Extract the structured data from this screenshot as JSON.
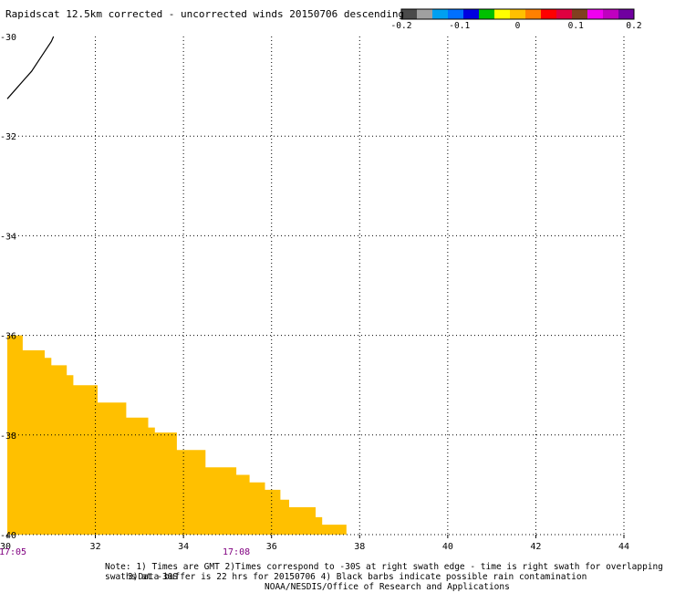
{
  "title": "Rapidscat 12.5km corrected - uncorrected winds 20150706 descending",
  "colorbar": {
    "colors": [
      "#4a4a4a",
      "#a0a0a0",
      "#00a0f0",
      "#0070ff",
      "#0000e0",
      "#00c000",
      "#ffff00",
      "#ffc000",
      "#ff8000",
      "#ff0000",
      "#e00040",
      "#804020",
      "#f000f0",
      "#c000c0",
      "#7000a0"
    ],
    "tick_labels": [
      "-0.2",
      "-0.1",
      "0",
      "0.1",
      "0.2"
    ]
  },
  "map": {
    "x_ticks": [
      "30",
      "32",
      "34",
      "36",
      "38",
      "40",
      "42",
      "44"
    ],
    "y_ticks": [
      "-30",
      "-32",
      "-34",
      "-36",
      "-38",
      "-40"
    ],
    "time_labels": [
      {
        "text": "17:05",
        "lon": 30
      },
      {
        "text": "17:08",
        "lon": 35.2
      }
    ],
    "time_label_color": "#800080",
    "swath_color": "#ffc000",
    "coast_color": "#000000",
    "swath_polygon": [
      [
        30,
        -36
      ],
      [
        30.35,
        -36
      ],
      [
        30.35,
        -36.3
      ],
      [
        30.85,
        -36.3
      ],
      [
        30.85,
        -36.45
      ],
      [
        31.0,
        -36.45
      ],
      [
        31.0,
        -36.6
      ],
      [
        31.35,
        -36.6
      ],
      [
        31.35,
        -36.8
      ],
      [
        31.5,
        -36.8
      ],
      [
        31.5,
        -37.0
      ],
      [
        32.05,
        -37.0
      ],
      [
        32.05,
        -37.35
      ],
      [
        32.7,
        -37.35
      ],
      [
        32.7,
        -37.65
      ],
      [
        33.2,
        -37.65
      ],
      [
        33.2,
        -37.85
      ],
      [
        33.35,
        -37.85
      ],
      [
        33.35,
        -37.95
      ],
      [
        33.85,
        -37.95
      ],
      [
        33.85,
        -38.3
      ],
      [
        34.5,
        -38.3
      ],
      [
        34.5,
        -38.65
      ],
      [
        35.2,
        -38.65
      ],
      [
        35.2,
        -38.8
      ],
      [
        35.5,
        -38.8
      ],
      [
        35.5,
        -38.95
      ],
      [
        35.85,
        -38.95
      ],
      [
        35.85,
        -39.1
      ],
      [
        36.2,
        -39.1
      ],
      [
        36.2,
        -39.3
      ],
      [
        36.4,
        -39.3
      ],
      [
        36.4,
        -39.45
      ],
      [
        37.0,
        -39.45
      ],
      [
        37.0,
        -39.65
      ],
      [
        37.15,
        -39.65
      ],
      [
        37.15,
        -39.8
      ],
      [
        37.7,
        -39.8
      ],
      [
        37.7,
        -40.0
      ],
      [
        30,
        -40.0
      ]
    ],
    "coastline": [
      [
        30.0,
        -31.25
      ],
      [
        30.2,
        -31.05
      ],
      [
        30.4,
        -30.85
      ],
      [
        30.55,
        -30.7
      ],
      [
        30.7,
        -30.5
      ],
      [
        30.85,
        -30.3
      ],
      [
        31.0,
        -30.1
      ],
      [
        31.05,
        -30.0
      ]
    ]
  },
  "notes": [
    "Note: 1) Times are GMT 2)Times correspond to -30S at right swath edge - time is right swath for overlapping swaths at -30S",
    "3)Data buffer is 22 hrs for 20150706 4) Black barbs indicate possible rain contamination",
    "NOAA/NESDIS/Office of Research and Applications"
  ]
}
